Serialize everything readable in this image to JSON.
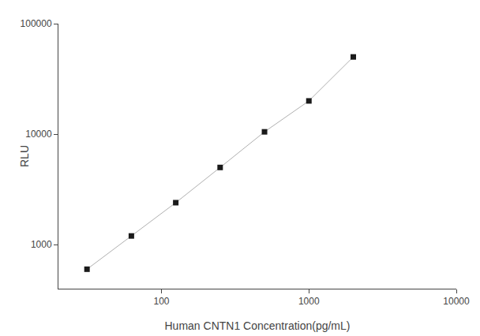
{
  "chart_data": {
    "type": "line",
    "x_label": "Human CNTN1 Concentration(pg/mL)",
    "y_label": "RLU",
    "x": [
      31.25,
      62.5,
      125,
      250,
      500,
      1000,
      2000
    ],
    "series": [
      {
        "type": "line",
        "color": "#b0b0b0",
        "line_style": "solid",
        "values": [
          600,
          1200,
          2400,
          5000,
          10500,
          20000,
          50000
        ]
      },
      {
        "type": "scatter",
        "color": "#1a1a1a",
        "marker": "square",
        "values": [
          600,
          1200,
          2400,
          5000,
          10500,
          20000,
          50000
        ]
      }
    ],
    "xlim": [
      20,
      10000
    ],
    "ylim": [
      400,
      100000
    ],
    "xticks": [
      100,
      1000,
      10000
    ],
    "yticks": [
      1000,
      10000,
      100000
    ],
    "log": true,
    "grid": false
  }
}
